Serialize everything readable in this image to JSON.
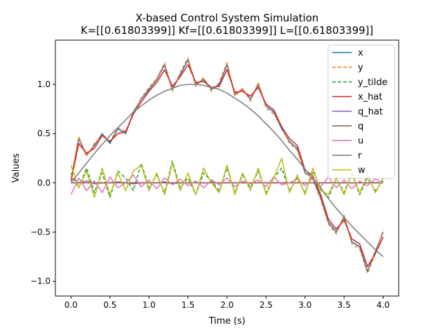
{
  "chart_data": {
    "type": "line",
    "title_line1": "X-based Control System Simulation",
    "title_line2": "K=[[0.61803399]] Kf=[[0.61803399]] L=[[0.61803399]]",
    "xlabel": "Time (s)",
    "ylabel": "Values",
    "xlim": [
      -0.2,
      4.2
    ],
    "ylim": [
      -1.15,
      1.45
    ],
    "xticks": [
      0.0,
      0.5,
      1.0,
      1.5,
      2.0,
      2.5,
      3.0,
      3.5,
      4.0
    ],
    "xtick_labels": [
      "0.0",
      "0.5",
      "1.0",
      "1.5",
      "2.0",
      "2.5",
      "3.0",
      "3.5",
      "4.0"
    ],
    "yticks": [
      -1.0,
      -0.5,
      0.0,
      0.5,
      1.0
    ],
    "ytick_labels": [
      "−1.0",
      "−0.5",
      "0.0",
      "0.5",
      "1.0"
    ],
    "grid": false,
    "legend_position": "top-right",
    "x": [
      0.0,
      0.1,
      0.2,
      0.3,
      0.4,
      0.5,
      0.6,
      0.7,
      0.8,
      0.9,
      1.0,
      1.1,
      1.2,
      1.3,
      1.4,
      1.5,
      1.6,
      1.7,
      1.8,
      1.9,
      2.0,
      2.1,
      2.2,
      2.3,
      2.4,
      2.5,
      2.6,
      2.7,
      2.8,
      2.9,
      3.0,
      3.1,
      3.2,
      3.3,
      3.4,
      3.5,
      3.6,
      3.7,
      3.8,
      3.9,
      4.0
    ],
    "series": [
      {
        "name": "x",
        "color": "#1f77b4",
        "dash": "solid",
        "values": [
          0.02,
          0.45,
          0.28,
          0.38,
          0.5,
          0.4,
          0.55,
          0.5,
          0.72,
          0.85,
          0.95,
          1.05,
          1.2,
          0.95,
          1.1,
          1.25,
          1.0,
          1.05,
          0.95,
          1.0,
          1.2,
          0.9,
          0.95,
          0.85,
          1.0,
          0.78,
          0.72,
          0.55,
          0.42,
          0.35,
          0.1,
          0.05,
          -0.15,
          -0.4,
          -0.5,
          -0.35,
          -0.6,
          -0.65,
          -0.9,
          -0.7,
          -0.5
        ]
      },
      {
        "name": "y",
        "color": "#ff7f0e",
        "dash": "dashed",
        "values": [
          0.03,
          0.47,
          0.27,
          0.4,
          0.48,
          0.42,
          0.56,
          0.52,
          0.7,
          0.86,
          0.97,
          1.06,
          1.22,
          0.93,
          1.12,
          1.27,
          0.98,
          1.07,
          0.93,
          1.02,
          1.22,
          0.88,
          0.96,
          0.83,
          1.02,
          0.76,
          0.7,
          0.57,
          0.4,
          0.33,
          0.12,
          0.03,
          -0.17,
          -0.42,
          -0.52,
          -0.33,
          -0.62,
          -0.67,
          -0.92,
          -0.72,
          -0.48
        ]
      },
      {
        "name": "y_tilde",
        "color": "#2ca02c",
        "dash": "dashed",
        "values": [
          0.1,
          -0.05,
          0.15,
          -0.1,
          0.1,
          -0.15,
          0.12,
          0.05,
          -0.08,
          0.2,
          -0.05,
          0.08,
          -0.1,
          0.22,
          -0.05,
          0.05,
          -0.12,
          0.1,
          0.02,
          -0.08,
          0.15,
          -0.1,
          0.08,
          -0.05,
          0.12,
          -0.1,
          0.05,
          0.15,
          -0.08,
          0.05,
          -0.1,
          0.12,
          -0.05,
          -0.15,
          0.05,
          -0.1,
          0.1,
          -0.12,
          0.05,
          -0.08,
          0.02
        ]
      },
      {
        "name": "x_hat",
        "color": "#d62728",
        "dash": "solid",
        "values": [
          0.02,
          0.4,
          0.3,
          0.35,
          0.48,
          0.42,
          0.5,
          0.52,
          0.7,
          0.82,
          0.93,
          1.02,
          1.15,
          0.98,
          1.08,
          1.2,
          1.02,
          1.03,
          0.97,
          0.98,
          1.15,
          0.92,
          0.93,
          0.88,
          0.97,
          0.8,
          0.74,
          0.57,
          0.45,
          0.38,
          0.13,
          0.07,
          -0.12,
          -0.37,
          -0.47,
          -0.38,
          -0.57,
          -0.62,
          -0.85,
          -0.72,
          -0.55
        ]
      },
      {
        "name": "q_hat",
        "color": "#9467bd",
        "dash": "solid",
        "values": [
          0.05,
          0.0,
          0.02,
          -0.01,
          0.0,
          0.0,
          0.01,
          0.0,
          -0.01,
          0.0,
          0.0,
          0.0,
          0.01,
          -0.01,
          0.0,
          0.0,
          0.0,
          0.0,
          0.0,
          0.0,
          0.0,
          0.0,
          0.0,
          0.0,
          0.0,
          0.0,
          0.0,
          0.0,
          0.0,
          0.0,
          0.0,
          0.0,
          0.0,
          0.0,
          0.0,
          0.0,
          0.0,
          0.0,
          0.0,
          0.0,
          0.0
        ]
      },
      {
        "name": "q",
        "color": "#8c564b",
        "dash": "solid",
        "values": [
          0.0,
          0.0,
          0.0,
          0.0,
          0.0,
          0.0,
          0.0,
          0.0,
          0.0,
          0.0,
          0.0,
          0.0,
          0.0,
          0.0,
          0.0,
          0.0,
          0.0,
          0.0,
          0.0,
          0.0,
          0.0,
          0.0,
          0.0,
          0.0,
          0.0,
          0.0,
          0.0,
          0.0,
          0.0,
          0.0,
          0.0,
          0.0,
          0.0,
          0.0,
          0.0,
          0.0,
          0.0,
          0.0,
          0.0,
          0.0,
          0.0
        ]
      },
      {
        "name": "u",
        "color": "#e377c2",
        "dash": "solid",
        "values": [
          -0.12,
          0.05,
          -0.08,
          0.02,
          -0.1,
          0.06,
          -0.05,
          0.0,
          0.08,
          -0.04,
          0.03,
          -0.06,
          0.05,
          -0.02,
          0.04,
          -0.03,
          0.02,
          -0.05,
          0.03,
          -0.02,
          0.05,
          -0.04,
          0.02,
          -0.01,
          0.03,
          -0.04,
          0.06,
          -0.02,
          0.0,
          0.04,
          -0.03,
          0.05,
          -0.04,
          0.06,
          -0.05,
          0.03,
          -0.06,
          0.02,
          -0.03,
          0.04,
          0.0
        ]
      },
      {
        "name": "r",
        "color": "#7f7f7f",
        "dash": "solid",
        "values": [
          0.0,
          0.1,
          0.2,
          0.3,
          0.39,
          0.48,
          0.56,
          0.64,
          0.72,
          0.78,
          0.84,
          0.89,
          0.93,
          0.96,
          0.99,
          1.0,
          1.0,
          0.99,
          0.97,
          0.95,
          0.91,
          0.86,
          0.81,
          0.75,
          0.68,
          0.6,
          0.52,
          0.43,
          0.33,
          0.24,
          0.14,
          0.04,
          -0.06,
          -0.16,
          -0.26,
          -0.35,
          -0.44,
          -0.52,
          -0.6,
          -0.68,
          -0.75
        ]
      },
      {
        "name": "w",
        "color": "#bcbd22",
        "dash": "solid",
        "values": [
          0.18,
          -0.05,
          0.12,
          -0.15,
          0.15,
          -0.12,
          0.1,
          -0.08,
          0.12,
          0.18,
          -0.08,
          0.1,
          -0.12,
          0.2,
          -0.08,
          0.1,
          -0.12,
          0.15,
          0.0,
          -0.1,
          0.18,
          -0.12,
          0.1,
          -0.08,
          0.15,
          -0.12,
          0.05,
          0.25,
          -0.1,
          0.08,
          -0.12,
          0.15,
          -0.08,
          -0.12,
          0.05,
          -0.12,
          0.1,
          -0.1,
          0.08,
          -0.1,
          0.05
        ]
      }
    ]
  }
}
